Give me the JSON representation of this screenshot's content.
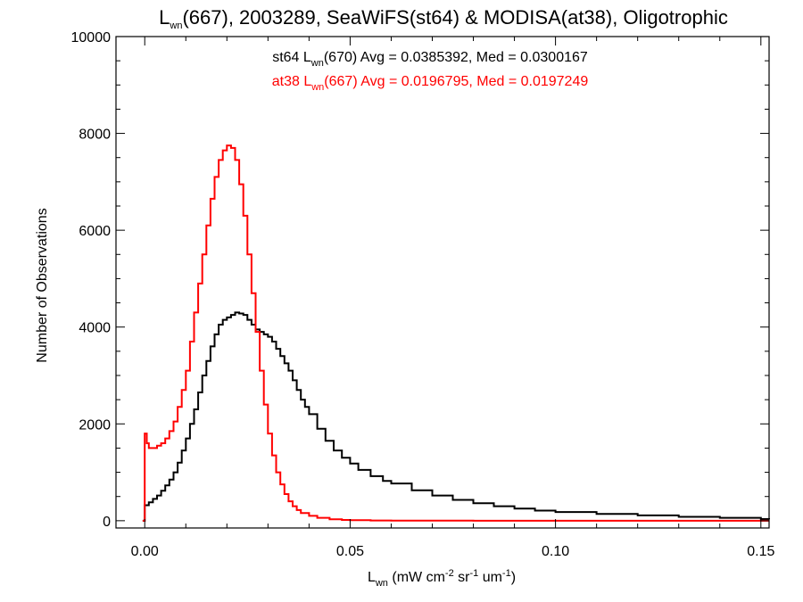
{
  "chart_data": {
    "type": "line",
    "title": {
      "pre": "L",
      "sub": "wn",
      "post": "(667), 2003289, SeaWiFS(st64) & MODISA(at38), Oligotrophic"
    },
    "ylabel": "Number of Observations",
    "xlabel": {
      "pre": "L",
      "sub": "wn",
      "p1": " (mW cm",
      "s1": "-2",
      "p2": " sr",
      "s2": "-1",
      "p3": " um",
      "s3": "-1",
      "p4": ")"
    },
    "xlim": [
      -0.007,
      0.152
    ],
    "ylim": [
      -150,
      10000
    ],
    "xticks": [
      "0.00",
      "0.05",
      "0.10",
      "0.15"
    ],
    "xtick_values": [
      0,
      0.05,
      0.1,
      0.15
    ],
    "yticks": [
      "0",
      "2000",
      "4000",
      "6000",
      "8000",
      "10000"
    ],
    "ytick_values": [
      0,
      2000,
      4000,
      6000,
      8000,
      10000
    ],
    "annotations": [
      {
        "color": "#000000",
        "pre": "st64 L",
        "sub": "wn",
        "post": "(670) Avg = 0.0385392, Med = 0.0300167"
      },
      {
        "color": "#ff0000",
        "pre": "at38 L",
        "sub": "wn",
        "post": "(667) Avg = 0.0196795, Med = 0.0197249"
      }
    ],
    "series": [
      {
        "name": "st64",
        "color": "#000000",
        "x": [
          -0.0005,
          0.0,
          0.001,
          0.002,
          0.003,
          0.004,
          0.005,
          0.006,
          0.007,
          0.008,
          0.009,
          0.01,
          0.011,
          0.012,
          0.013,
          0.014,
          0.015,
          0.016,
          0.017,
          0.018,
          0.019,
          0.02,
          0.021,
          0.022,
          0.023,
          0.024,
          0.025,
          0.026,
          0.027,
          0.028,
          0.029,
          0.03,
          0.031,
          0.032,
          0.033,
          0.034,
          0.035,
          0.036,
          0.037,
          0.038,
          0.039,
          0.04,
          0.042,
          0.044,
          0.046,
          0.048,
          0.05,
          0.052,
          0.055,
          0.058,
          0.06,
          0.065,
          0.07,
          0.075,
          0.08,
          0.085,
          0.09,
          0.095,
          0.1,
          0.11,
          0.12,
          0.13,
          0.14,
          0.15,
          0.152
        ],
        "y": [
          0,
          320,
          380,
          450,
          520,
          620,
          730,
          850,
          1000,
          1200,
          1450,
          1700,
          2000,
          2300,
          2650,
          3000,
          3300,
          3600,
          3850,
          4050,
          4150,
          4200,
          4250,
          4300,
          4280,
          4250,
          4150,
          4050,
          3950,
          3900,
          3850,
          3800,
          3700,
          3550,
          3400,
          3250,
          3100,
          2900,
          2700,
          2500,
          2350,
          2200,
          1900,
          1650,
          1450,
          1300,
          1180,
          1050,
          920,
          820,
          770,
          630,
          520,
          430,
          360,
          300,
          250,
          210,
          180,
          140,
          110,
          80,
          60,
          35,
          30
        ]
      },
      {
        "name": "at38",
        "color": "#ff0000",
        "x": [
          -0.0005,
          0.0,
          0.0005,
          0.001,
          0.002,
          0.003,
          0.004,
          0.005,
          0.006,
          0.007,
          0.008,
          0.009,
          0.01,
          0.011,
          0.012,
          0.013,
          0.014,
          0.015,
          0.016,
          0.017,
          0.018,
          0.019,
          0.02,
          0.021,
          0.022,
          0.023,
          0.024,
          0.025,
          0.026,
          0.027,
          0.028,
          0.029,
          0.03,
          0.031,
          0.032,
          0.033,
          0.034,
          0.035,
          0.036,
          0.037,
          0.038,
          0.04,
          0.042,
          0.045,
          0.048,
          0.05,
          0.055,
          0.06,
          0.07,
          0.08,
          0.1,
          0.12,
          0.152
        ],
        "y": [
          0,
          1800,
          1600,
          1500,
          1500,
          1550,
          1600,
          1700,
          1850,
          2050,
          2350,
          2700,
          3100,
          3700,
          4300,
          4900,
          5500,
          6100,
          6650,
          7100,
          7450,
          7650,
          7750,
          7700,
          7450,
          6950,
          6300,
          5500,
          4700,
          3900,
          3100,
          2400,
          1800,
          1350,
          1000,
          750,
          550,
          400,
          300,
          220,
          160,
          100,
          60,
          30,
          15,
          10,
          5,
          2,
          1,
          0,
          0,
          0,
          0
        ]
      }
    ]
  }
}
